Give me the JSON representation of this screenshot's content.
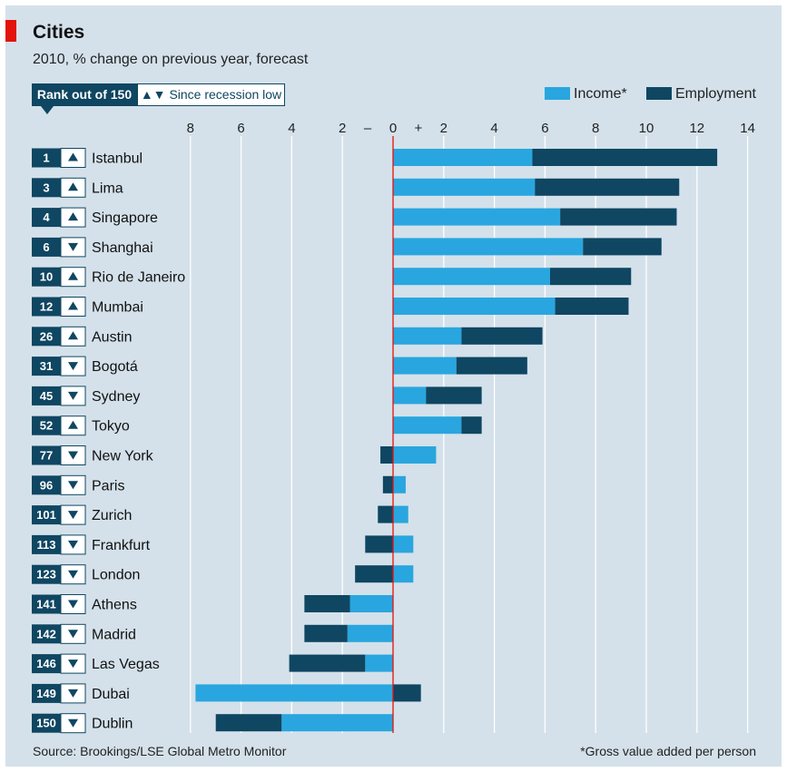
{
  "title": "Cities",
  "subtitle": "2010, % change on previous year, forecast",
  "key": {
    "rank_label": "Rank out of 150",
    "since_label": "Since recession low",
    "since_arrows": "▲▼"
  },
  "source": "Source: Brookings/LSE Global Metro Monitor",
  "footnote": "*Gross value added per person",
  "colors": {
    "income": "#29a6df",
    "employment": "#0f4662",
    "zero_line": "#e3120b",
    "background": "#d4e1ea",
    "rank_box": "#0f4662"
  },
  "chart_data": {
    "type": "bar",
    "orientation": "horizontal",
    "stacked": true,
    "xlim": [
      -8,
      14
    ],
    "x_ticks": [
      {
        "value": -8,
        "label": "8"
      },
      {
        "value": -6,
        "label": "6"
      },
      {
        "value": -4,
        "label": "4"
      },
      {
        "value": -2,
        "label": "2"
      },
      {
        "value": 0,
        "label": "0"
      },
      {
        "value": 2,
        "label": "2"
      },
      {
        "value": 4,
        "label": "4"
      },
      {
        "value": 6,
        "label": "6"
      },
      {
        "value": 8,
        "label": "8"
      },
      {
        "value": 10,
        "label": "10"
      },
      {
        "value": 12,
        "label": "12"
      },
      {
        "value": 14,
        "label": "14"
      }
    ],
    "sign_labels": {
      "minus": "–",
      "plus": "+"
    },
    "grid": "vertical",
    "legend": {
      "placement": "top-right",
      "entries": [
        "Income*",
        "Employment"
      ]
    },
    "categories": [
      "Istanbul",
      "Lima",
      "Singapore",
      "Shanghai",
      "Rio de Janeiro",
      "Mumbai",
      "Austin",
      "Bogotá",
      "Sydney",
      "Tokyo",
      "New York",
      "Paris",
      "Zurich",
      "Frankfurt",
      "London",
      "Athens",
      "Madrid",
      "Las Vegas",
      "Dubai",
      "Dublin"
    ],
    "ranks": [
      1,
      3,
      4,
      6,
      10,
      12,
      26,
      31,
      45,
      52,
      77,
      96,
      101,
      113,
      123,
      141,
      142,
      146,
      149,
      150
    ],
    "since_recession_low": [
      "up",
      "up",
      "up",
      "down",
      "up",
      "up",
      "up",
      "down",
      "down",
      "up",
      "down",
      "down",
      "down",
      "down",
      "down",
      "down",
      "down",
      "down",
      "down",
      "down"
    ],
    "series": [
      {
        "name": "Income*",
        "values": [
          5.5,
          5.6,
          6.6,
          7.5,
          6.2,
          6.4,
          2.7,
          2.5,
          1.3,
          2.7,
          1.7,
          0.5,
          0.6,
          0.8,
          0.8,
          -1.7,
          -1.8,
          -1.1,
          -7.8,
          -4.4
        ]
      },
      {
        "name": "Employment",
        "values": [
          7.3,
          5.7,
          4.6,
          3.1,
          3.2,
          2.9,
          3.2,
          2.8,
          2.2,
          0.8,
          -0.5,
          -0.4,
          -0.6,
          -1.1,
          -1.5,
          -1.8,
          -1.7,
          -3.0,
          1.1,
          -2.6
        ]
      }
    ]
  }
}
